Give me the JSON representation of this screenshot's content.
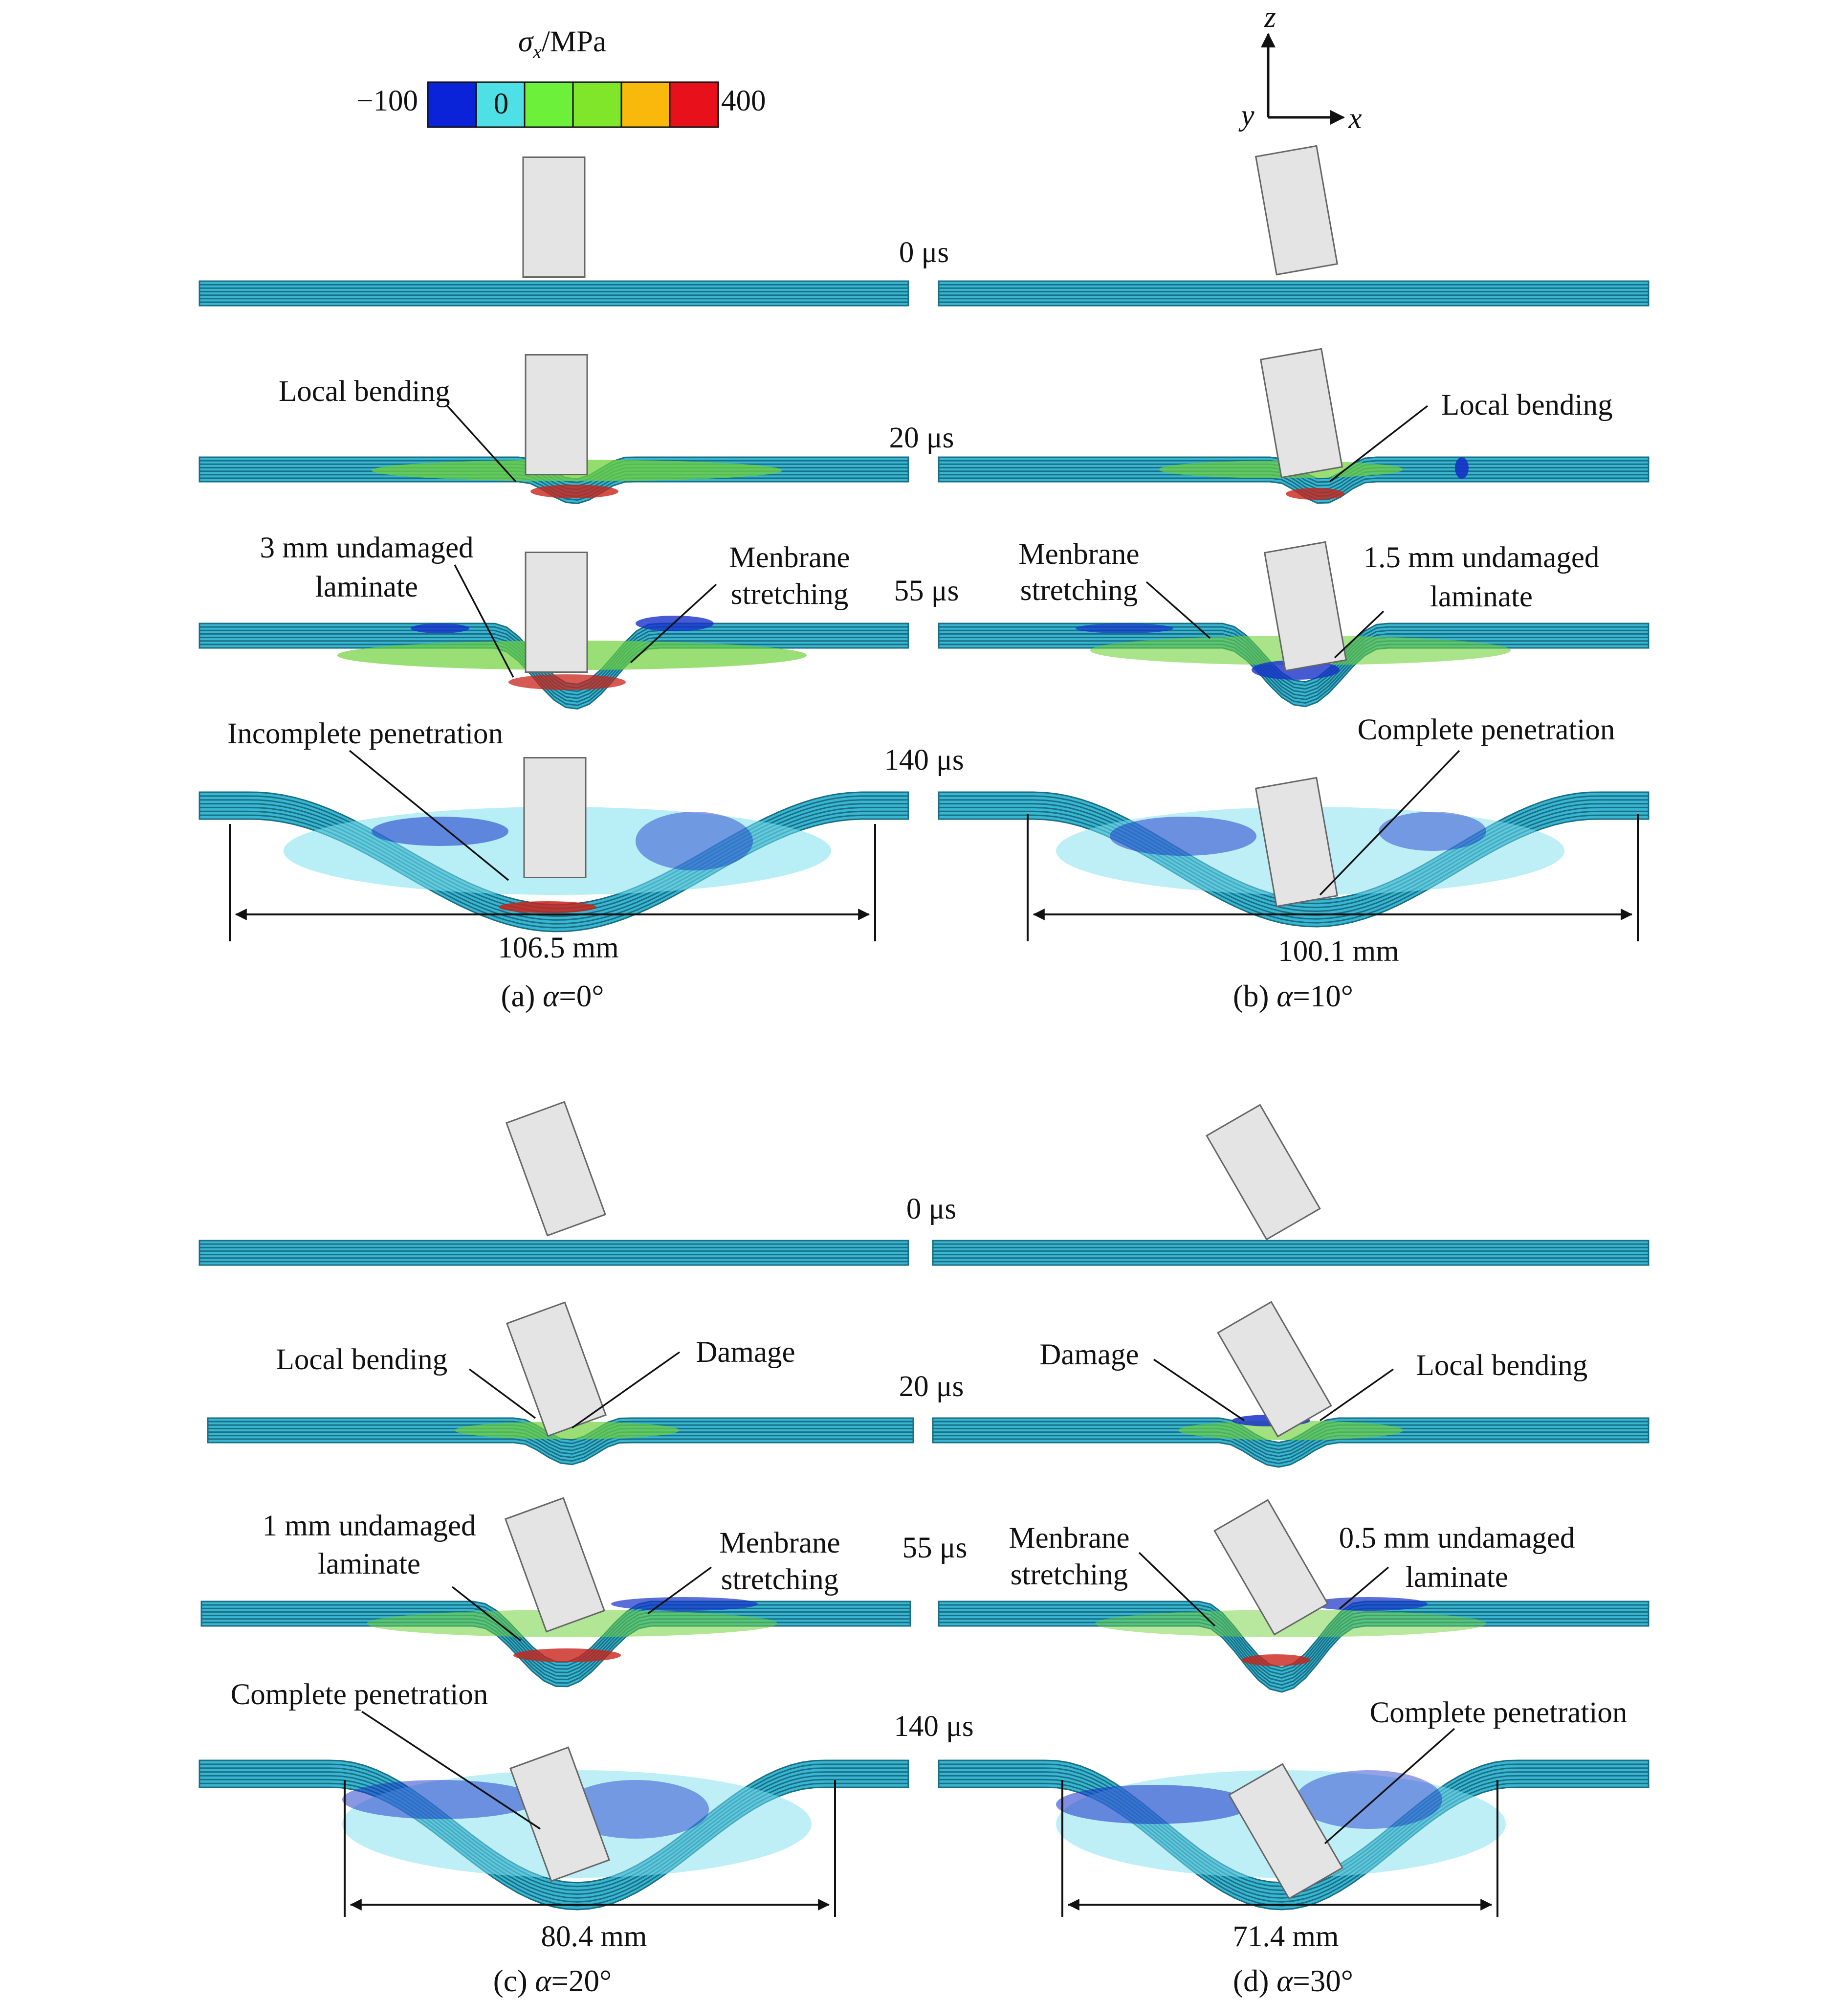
{
  "colorbar": {
    "title_symbol": "σ",
    "title_sub": "x",
    "title_unit": "/MPa",
    "min_label": "−100",
    "max_label": "400",
    "zero_label": "0",
    "colors": [
      "#0a22d8",
      "#4fe0e6",
      "#6cf03a",
      "#7fe62a",
      "#f8b80c",
      "#e8101a"
    ]
  },
  "axes": {
    "z": "z",
    "y": "y",
    "x": "x"
  },
  "colors": {
    "laminate_base": "#38b6d2",
    "laminate_line": "#1a6f84",
    "projectile_fill": "#e4e4e4",
    "projectile_stroke": "#666666",
    "green": "#6fd13c",
    "blue": "#1631c8",
    "red": "#c8231a",
    "cyan_light": "#7ee0ef"
  },
  "panels": {
    "a": {
      "caption_prefix": "(a) ",
      "caption_alpha": "α",
      "caption_value": "=0°",
      "times": [
        "0 μs",
        "20 μs",
        "55 μs",
        "140 μs"
      ],
      "annotations": {
        "local_bending": "Local bending",
        "undamaged_1": "3 mm undamaged",
        "undamaged_2": "laminate",
        "membrane_1": "Menbrane",
        "membrane_2": "stretching",
        "penetration": "Incomplete penetration"
      },
      "dimension": "106.5 mm"
    },
    "b": {
      "caption_prefix": "(b) ",
      "caption_alpha": "α",
      "caption_value": "=10°",
      "annotations": {
        "local_bending": "Local bending",
        "membrane_1": "Menbrane",
        "membrane_2": "stretching",
        "undamaged_1": "1.5 mm undamaged",
        "undamaged_2": "laminate",
        "penetration": "Complete penetration"
      },
      "dimension": "100.1 mm"
    },
    "c": {
      "caption_prefix": "(c) ",
      "caption_alpha": "α",
      "caption_value": "=20°",
      "times": [
        "0 μs",
        "20 μs",
        "55 μs",
        "140 μs"
      ],
      "annotations": {
        "local_bending": "Local bending",
        "damage": "Damage",
        "undamaged_1": "1 mm undamaged",
        "undamaged_2": "laminate",
        "membrane_1": "Menbrane",
        "membrane_2": "stretching",
        "penetration": "Complete penetration"
      },
      "dimension": "80.4 mm"
    },
    "d": {
      "caption_prefix": "(d) ",
      "caption_alpha": "α",
      "caption_value": "=30°",
      "annotations": {
        "damage": "Damage",
        "local_bending": "Local bending",
        "membrane_1": "Menbrane",
        "membrane_2": "stretching",
        "undamaged_1": "0.5 mm undamaged",
        "undamaged_2": "laminate",
        "penetration": "Complete penetration"
      },
      "dimension": "71.4 mm"
    }
  }
}
